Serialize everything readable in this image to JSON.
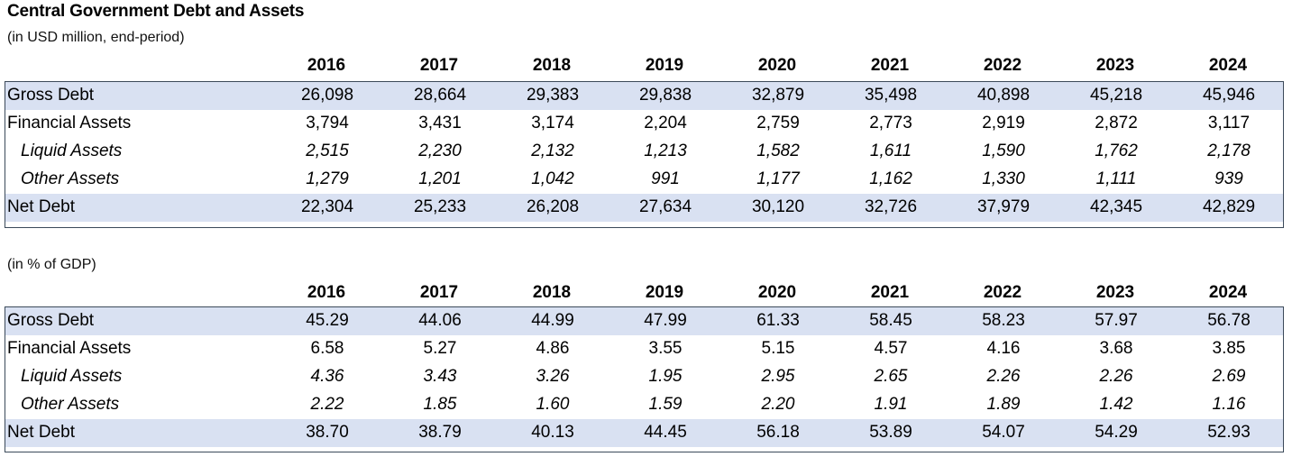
{
  "title": "Central Government Debt and Assets",
  "subtitle_usd": "(in USD million, end-period)",
  "subtitle_gdp": "(in % of GDP)",
  "years": [
    "2016",
    "2017",
    "2018",
    "2019",
    "2020",
    "2021",
    "2022",
    "2023",
    "2024"
  ],
  "usd_table": {
    "rows": [
      {
        "label": "Gross Debt",
        "values": [
          "26,098",
          "28,664",
          "29,383",
          "29,838",
          "32,879",
          "35,498",
          "40,898",
          "45,218",
          "45,946"
        ]
      },
      {
        "label": "Financial Assets",
        "values": [
          "3,794",
          "3,431",
          "3,174",
          "2,204",
          "2,759",
          "2,773",
          "2,919",
          "2,872",
          "3,117"
        ]
      },
      {
        "label": "Liquid Assets",
        "values": [
          "2,515",
          "2,230",
          "2,132",
          "1,213",
          "1,582",
          "1,611",
          "1,590",
          "1,762",
          "2,178"
        ]
      },
      {
        "label": "Other Assets",
        "values": [
          "1,279",
          "1,201",
          "1,042",
          "991",
          "1,177",
          "1,162",
          "1,330",
          "1,111",
          "939"
        ]
      },
      {
        "label": "Net Debt",
        "values": [
          "22,304",
          "25,233",
          "26,208",
          "27,634",
          "30,120",
          "32,726",
          "37,979",
          "42,345",
          "42,829"
        ]
      }
    ]
  },
  "gdp_table": {
    "rows": [
      {
        "label": "Gross Debt",
        "values": [
          "45.29",
          "44.06",
          "44.99",
          "47.99",
          "61.33",
          "58.45",
          "58.23",
          "57.97",
          "56.78"
        ]
      },
      {
        "label": "Financial Assets",
        "values": [
          "6.58",
          "5.27",
          "4.86",
          "3.55",
          "5.15",
          "4.57",
          "4.16",
          "3.68",
          "3.85"
        ]
      },
      {
        "label": "Liquid Assets",
        "values": [
          "4.36",
          "3.43",
          "3.26",
          "1.95",
          "2.95",
          "2.65",
          "2.26",
          "2.26",
          "2.69"
        ]
      },
      {
        "label": "Other Assets",
        "values": [
          "2.22",
          "1.85",
          "1.60",
          "1.59",
          "2.20",
          "1.91",
          "1.89",
          "1.42",
          "1.16"
        ]
      },
      {
        "label": "Net Debt",
        "values": [
          "38.70",
          "38.79",
          "40.13",
          "44.45",
          "56.18",
          "53.89",
          "54.07",
          "54.29",
          "52.93"
        ]
      }
    ]
  }
}
